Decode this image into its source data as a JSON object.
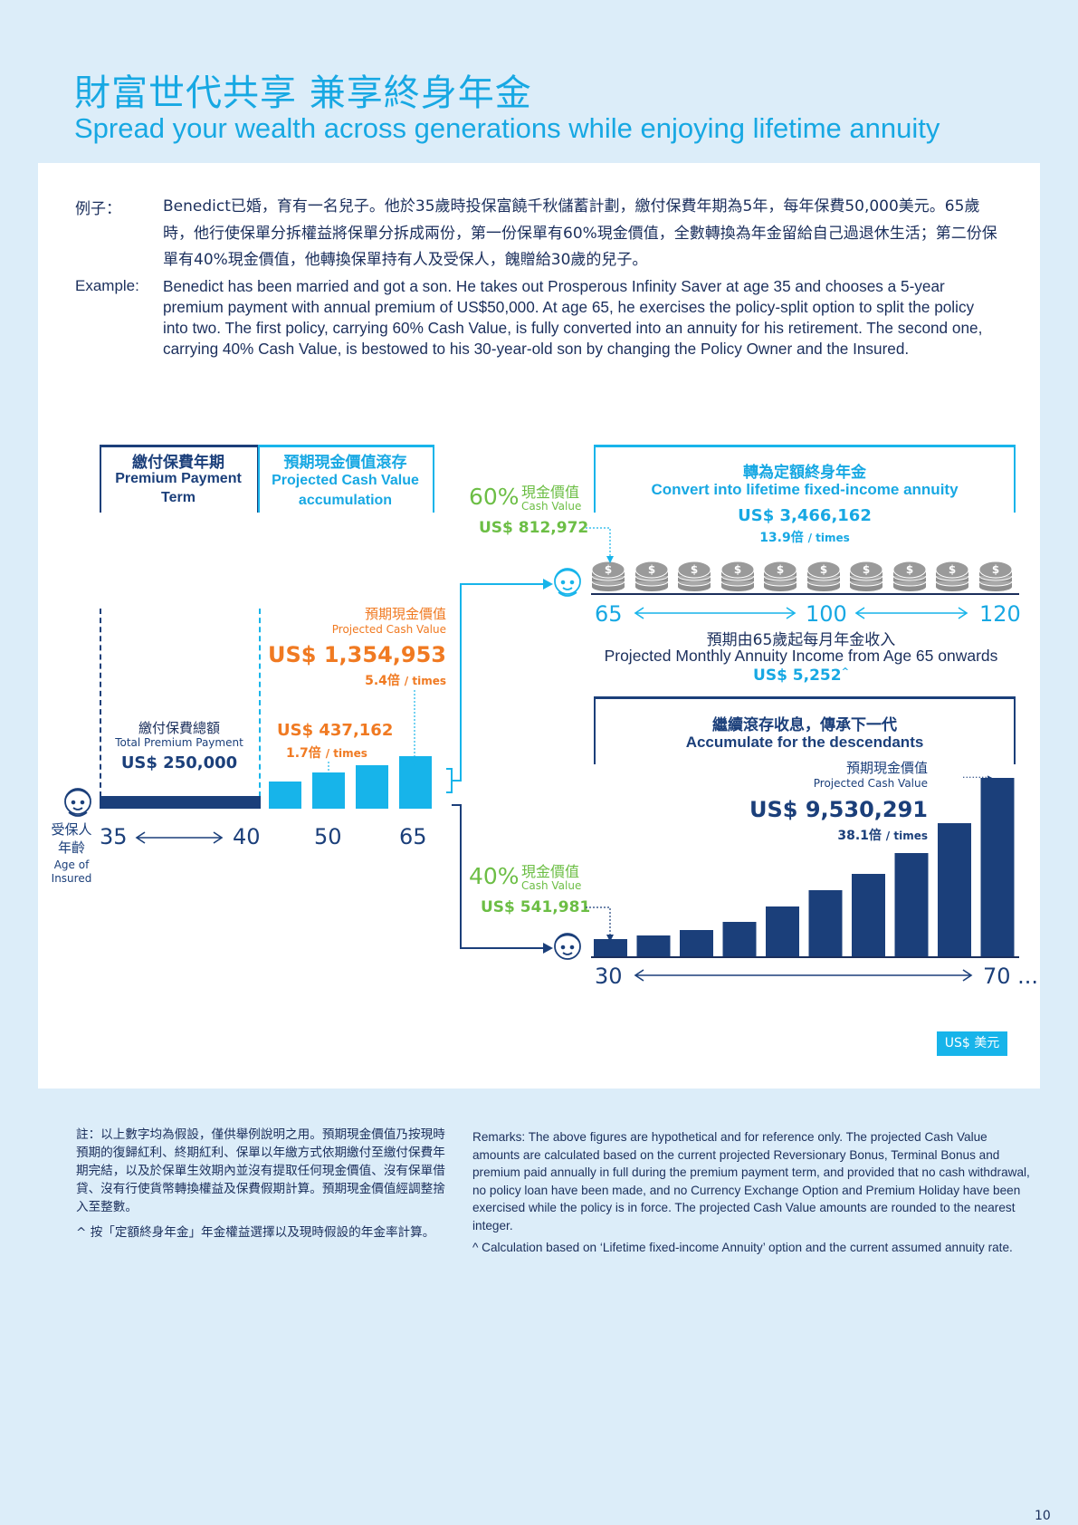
{
  "title_zh": "財富世代共享 兼享終身年金",
  "title_en": "Spread your wealth across generations while enjoying lifetime annuity",
  "example": {
    "label_zh": "例子：",
    "label_en": "Example:",
    "text_zh": "Benedict已婚，育有一名兒子。他於35歲時投保富饒千秋儲蓄計劃，繳付保費年期為5年，每年保費50,000美元。65歲時，他行使保單分拆權益將保單分拆成兩份，第一份保單有60%現金價值，全數轉換為年金留給自己過退休生活；第二份保單有40%現金價值，他轉換保單持有人及受保人，餽贈給30歲的兒子。",
    "text_en": "Benedict has been married and got a son. He takes out Prosperous Infinity Saver at age 35 and chooses a 5-year premium payment with annual premium of US$50,000. At age 65, he exercises the policy-split option to split the policy into two. The first policy, carrying 60% Cash Value, is fully converted into an annuity for his retirement. The second one, carrying 40% Cash Value, is bestowed to his 30-year-old son by changing the Policy Owner and the Insured."
  },
  "premium_term": {
    "zh": "繳付保費年期",
    "en": "Premium Payment Term"
  },
  "cash_accum": {
    "zh": "預期現金價值滾存",
    "en": "Projected Cash Value accumulation"
  },
  "total_premium": {
    "zh": "繳付保費總額",
    "en": "Total Premium Payment",
    "value": "US$ 250,000"
  },
  "cv50": {
    "value": "US$ 437,162",
    "mult": "1.7倍",
    "times": "/ times"
  },
  "cv65": {
    "zh": "預期現金價值",
    "en": "Projected Cash Value",
    "value": "US$ 1,354,953",
    "mult": "5.4倍",
    "times": "/ times"
  },
  "insured": {
    "zh1": "受保人",
    "zh2": "年齡",
    "en1": "Age of",
    "en2": "Insured"
  },
  "ages_left": [
    "35",
    "40",
    "50",
    "65"
  ],
  "split60": {
    "pct": "60%",
    "zh": "現金價值",
    "en": "Cash Value",
    "value": "US$ 812,972"
  },
  "split40": {
    "pct": "40%",
    "zh": "現金價值",
    "en": "Cash Value",
    "value": "US$ 541,981"
  },
  "annuity": {
    "zh": "轉為定額終身年金",
    "en": "Convert into lifetime fixed-income annuity",
    "value": "US$ 3,466,162",
    "mult": "13.9倍",
    "times": "/ times"
  },
  "ages_annuity": [
    "65",
    "100",
    "120"
  ],
  "monthly": {
    "zh": "預期由65歲起每月年金收入",
    "en": "Projected Monthly Annuity Income from Age 65 onwards",
    "value": "US$ 5,252",
    "sup": "^"
  },
  "descendants": {
    "zh": "繼續滾存收息，傳承下一代",
    "en": "Accumulate for the descendants"
  },
  "cv_son": {
    "zh": "預期現金價值",
    "en": "Projected Cash Value",
    "value": "US$ 9,530,291",
    "mult": "38.1倍",
    "times": "/ times"
  },
  "ages_son": [
    "30",
    "70 ..."
  ],
  "currency_badge": "US$ 美元",
  "coin_symbol": "$",
  "remarks_zh": "註：以上數字均為假設，僅供舉例說明之用。預期現金價值乃按現時預期的復歸紅利、終期紅利、保單以年繳方式依期繳付至繳付保費年期完結，以及於保單生效期內並沒有提取任何現金價值、沒有保單借貸、沒有行使貨幣轉換權益及保費假期計算。預期現金價值經調整捨入至整數。",
  "note_zh": "^ 按「定額終身年金」年金權益選擇以及現時假設的年金率計算。",
  "remarks_en": "Remarks: The above figures are hypothetical and for reference only. The projected Cash Value amounts are calculated based on the current projected Reversionary Bonus, Terminal Bonus and premium paid annually in full during the premium payment term, and provided that no cash withdrawal, no policy loan have been made, and no Currency Exchange Option and Premium Holiday have been exercised while the policy is in force. The projected Cash Value amounts are rounded to the nearest integer.",
  "note_en": "^ Calculation based on ‘Lifetime fixed-income Annuity’ option and the current assumed annuity rate.",
  "page_number": "10",
  "colors": {
    "cyan": "#17b4ea",
    "navy": "#1b3f7a",
    "orange": "#f07a22",
    "green": "#6cbe45"
  },
  "chart_data": [
    {
      "type": "bar",
      "categories": [
        "35-40",
        "",
        "",
        "",
        "65"
      ],
      "values": [
        250000,
        null,
        437162,
        null,
        1354953
      ],
      "xlabel": "受保人年齡 Age of Insured"
    },
    {
      "type": "bar",
      "x": [
        "30",
        "70 ..."
      ],
      "values_last": 9530291
    }
  ]
}
